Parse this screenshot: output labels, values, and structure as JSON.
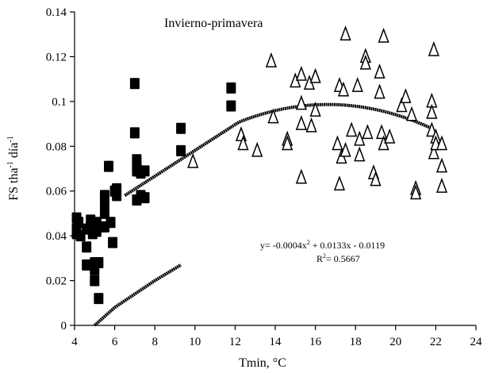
{
  "chart_data": {
    "type": "scatter",
    "title": "Invierno-primavera",
    "xlabel": "Tmin, °C",
    "ylabel_parts": [
      "FS tha",
      "-1",
      " día",
      "-1"
    ],
    "xlim": [
      4,
      24
    ],
    "ylim": [
      0,
      0.14
    ],
    "x_ticks": [
      "4",
      "6",
      "8",
      "10",
      "12",
      "14",
      "16",
      "18",
      "20",
      "22",
      "24"
    ],
    "y_ticks": [
      "0",
      "0.02",
      "0.04",
      "0.06",
      "0.08",
      "0.1",
      "0.12",
      "0.14"
    ],
    "grid": false,
    "legend": "none",
    "annotation": {
      "equation_parts": [
        "y= -0.0004x",
        "2",
        " + 0.0133x - 0.0119"
      ],
      "r2_parts": [
        "R",
        "2",
        "= 0.5667"
      ]
    },
    "series": [
      {
        "marker": "filled-square",
        "points": [
          [
            4.1,
            0.048
          ],
          [
            4.1,
            0.043
          ],
          [
            4.1,
            0.041
          ],
          [
            4.2,
            0.046
          ],
          [
            4.3,
            0.04
          ],
          [
            4.6,
            0.043
          ],
          [
            4.6,
            0.035
          ],
          [
            4.6,
            0.027
          ],
          [
            4.8,
            0.047
          ],
          [
            4.8,
            0.044
          ],
          [
            4.9,
            0.041
          ],
          [
            5.0,
            0.028
          ],
          [
            5.0,
            0.025
          ],
          [
            5.0,
            0.02
          ],
          [
            5.1,
            0.046
          ],
          [
            5.1,
            0.042
          ],
          [
            5.2,
            0.028
          ],
          [
            5.2,
            0.012
          ],
          [
            5.5,
            0.058
          ],
          [
            5.5,
            0.054
          ],
          [
            5.5,
            0.05
          ],
          [
            5.5,
            0.044
          ],
          [
            5.7,
            0.071
          ],
          [
            5.8,
            0.046
          ],
          [
            5.9,
            0.037
          ],
          [
            6.0,
            0.06
          ],
          [
            6.1,
            0.061
          ],
          [
            6.1,
            0.058
          ],
          [
            7.0,
            0.108
          ],
          [
            7.0,
            0.086
          ],
          [
            7.1,
            0.074
          ],
          [
            7.1,
            0.071
          ],
          [
            7.1,
            0.069
          ],
          [
            7.1,
            0.056
          ],
          [
            7.2,
            0.069
          ],
          [
            7.3,
            0.068
          ],
          [
            7.3,
            0.058
          ],
          [
            7.5,
            0.069
          ],
          [
            7.5,
            0.057
          ],
          [
            9.3,
            0.088
          ],
          [
            9.3,
            0.078
          ],
          [
            11.8,
            0.106
          ],
          [
            11.8,
            0.098
          ]
        ]
      },
      {
        "marker": "open-triangle",
        "points": [
          [
            9.9,
            0.073
          ],
          [
            12.3,
            0.085
          ],
          [
            12.4,
            0.081
          ],
          [
            13.1,
            0.078
          ],
          [
            13.8,
            0.118
          ],
          [
            13.9,
            0.093
          ],
          [
            14.6,
            0.083
          ],
          [
            14.6,
            0.081
          ],
          [
            15.0,
            0.109
          ],
          [
            15.3,
            0.112
          ],
          [
            15.3,
            0.099
          ],
          [
            15.3,
            0.09
          ],
          [
            15.3,
            0.066
          ],
          [
            15.7,
            0.108
          ],
          [
            15.8,
            0.089
          ],
          [
            16.0,
            0.111
          ],
          [
            16.0,
            0.096
          ],
          [
            17.1,
            0.081
          ],
          [
            17.2,
            0.107
          ],
          [
            17.2,
            0.063
          ],
          [
            17.3,
            0.075
          ],
          [
            17.4,
            0.105
          ],
          [
            17.5,
            0.13
          ],
          [
            17.5,
            0.078
          ],
          [
            17.8,
            0.087
          ],
          [
            18.1,
            0.107
          ],
          [
            18.2,
            0.083
          ],
          [
            18.2,
            0.076
          ],
          [
            18.5,
            0.12
          ],
          [
            18.5,
            0.117
          ],
          [
            18.6,
            0.086
          ],
          [
            18.9,
            0.068
          ],
          [
            19.0,
            0.065
          ],
          [
            19.2,
            0.113
          ],
          [
            19.2,
            0.104
          ],
          [
            19.3,
            0.086
          ],
          [
            19.4,
            0.081
          ],
          [
            19.4,
            0.129
          ],
          [
            19.7,
            0.084
          ],
          [
            20.3,
            0.098
          ],
          [
            20.5,
            0.102
          ],
          [
            20.8,
            0.094
          ],
          [
            21.0,
            0.061
          ],
          [
            21.0,
            0.059
          ],
          [
            21.8,
            0.1
          ],
          [
            21.8,
            0.095
          ],
          [
            21.8,
            0.087
          ],
          [
            21.9,
            0.077
          ],
          [
            21.9,
            0.123
          ],
          [
            22.0,
            0.084
          ],
          [
            22.0,
            0.081
          ],
          [
            22.3,
            0.081
          ],
          [
            22.3,
            0.071
          ],
          [
            22.3,
            0.062
          ]
        ]
      }
    ],
    "trendlines": [
      {
        "style": "dotted-thick",
        "from": [
          6.5,
          0.058
        ],
        "to": [
          12.2,
          0.089
        ],
        "coefficients": [
          -0.0004,
          0.0133,
          -0.0119
        ],
        "x_range": [
          12.2,
          21.9
        ]
      },
      {
        "style": "dotted-thick",
        "x": [
          5.0,
          6.0,
          7.0,
          8.0,
          9.3
        ],
        "y": [
          0.0,
          0.008,
          0.014,
          0.02,
          0.027
        ]
      }
    ]
  }
}
